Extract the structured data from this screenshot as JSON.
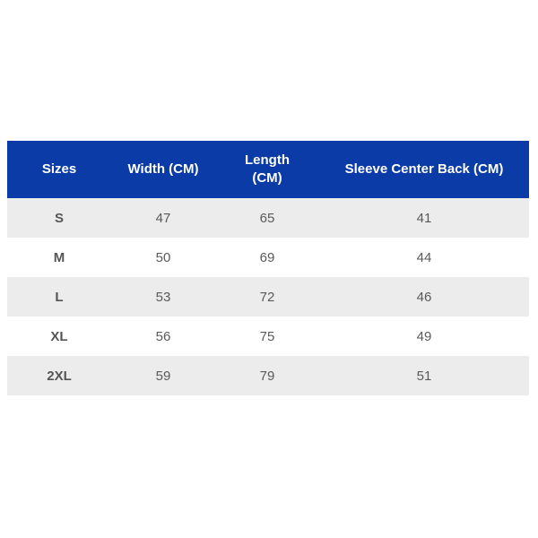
{
  "table": {
    "header": [
      "Sizes",
      "Width (CM)",
      "Length (CM)",
      "Sleeve Center Back (CM)"
    ],
    "rows": [
      [
        "S",
        47,
        65,
        41
      ],
      [
        "M",
        50,
        69,
        44
      ],
      [
        "L",
        53,
        72,
        46
      ],
      [
        "XL",
        56,
        75,
        49
      ],
      [
        "2XL",
        59,
        79,
        51
      ]
    ]
  }
}
